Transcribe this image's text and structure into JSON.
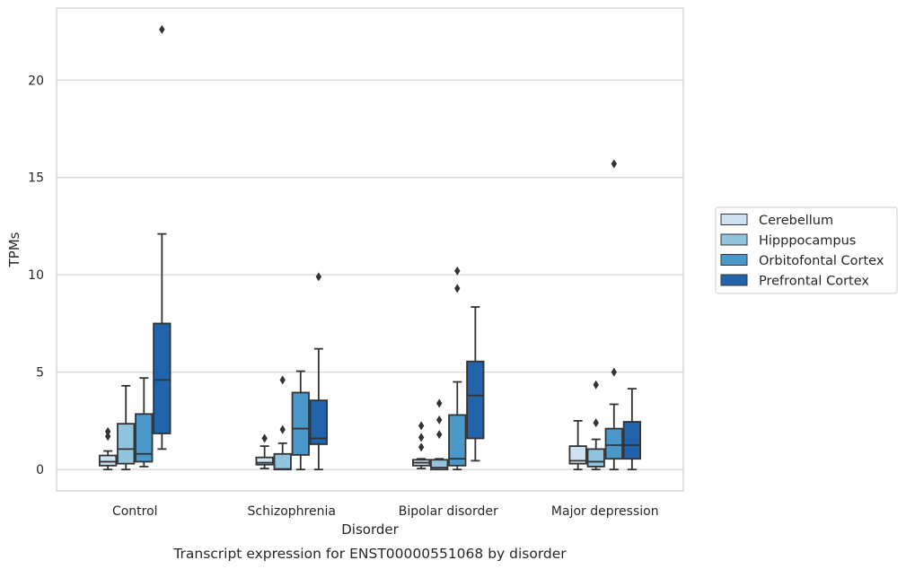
{
  "chart_data": {
    "type": "boxplot",
    "title": "",
    "caption": "Transcript expression for ENST00000551068 by disorder",
    "xlabel": "Disorder",
    "ylabel": "TPMs",
    "ylim": [
      -1.1,
      23.7
    ],
    "yticks": [
      0,
      5,
      10,
      15,
      20
    ],
    "grid": "horizontal",
    "legend_position": "right",
    "categories": [
      "Control",
      "Schizophrenia",
      "Bipolar disorder",
      "Major depression"
    ],
    "colors": {
      "Cerebellum": "#d0e1f2",
      "Hipppocampus": "#93c4de",
      "Orbitofontal Cortex": "#4a98c9",
      "Prefrontal Cortex": "#2164ab",
      "line": "#333333",
      "grid": "#d3d3d3"
    },
    "series": [
      {
        "name": "Cerebellum",
        "boxes": [
          {
            "whislo": 0.0,
            "q1": 0.2,
            "med": 0.4,
            "q3": 0.72,
            "whishi": 0.95,
            "fliers": [
              1.7,
              1.95
            ]
          },
          {
            "whislo": 0.05,
            "q1": 0.25,
            "med": 0.35,
            "q3": 0.62,
            "whishi": 1.2,
            "fliers": [
              1.6
            ]
          },
          {
            "whislo": 0.05,
            "q1": 0.2,
            "med": 0.35,
            "q3": 0.5,
            "whishi": 0.55,
            "fliers": [
              1.15,
              1.65,
              2.25
            ]
          },
          {
            "whislo": 0.0,
            "q1": 0.3,
            "med": 0.45,
            "q3": 1.2,
            "whishi": 2.5,
            "fliers": []
          }
        ]
      },
      {
        "name": "Hipppocampus",
        "boxes": [
          {
            "whislo": 0.0,
            "q1": 0.3,
            "med": 1.05,
            "q3": 2.35,
            "whishi": 4.3,
            "fliers": []
          },
          {
            "whislo": 0.0,
            "q1": 0.0,
            "med": 0.03,
            "q3": 0.8,
            "whishi": 1.35,
            "fliers": [
              2.05,
              4.6
            ]
          },
          {
            "whislo": 0.0,
            "q1": 0.0,
            "med": 0.1,
            "q3": 0.5,
            "whishi": 0.55,
            "fliers": [
              1.8,
              2.55,
              3.4
            ]
          },
          {
            "whislo": 0.0,
            "q1": 0.15,
            "med": 0.4,
            "q3": 1.05,
            "whishi": 1.55,
            "fliers": [
              2.4,
              4.35
            ]
          }
        ]
      },
      {
        "name": "Orbitofontal Cortex",
        "boxes": [
          {
            "whislo": 0.15,
            "q1": 0.4,
            "med": 0.8,
            "q3": 2.85,
            "whishi": 4.7,
            "fliers": []
          },
          {
            "whislo": 0.0,
            "q1": 0.75,
            "med": 2.1,
            "q3": 3.95,
            "whishi": 5.05,
            "fliers": []
          },
          {
            "whislo": 0.0,
            "q1": 0.2,
            "med": 0.55,
            "q3": 2.8,
            "whishi": 4.5,
            "fliers": [
              9.3,
              10.2
            ]
          },
          {
            "whislo": 0.0,
            "q1": 0.55,
            "med": 1.25,
            "q3": 2.1,
            "whishi": 3.35,
            "fliers": [
              5.0,
              15.7
            ]
          }
        ]
      },
      {
        "name": "Prefrontal Cortex",
        "boxes": [
          {
            "whislo": 1.05,
            "q1": 1.85,
            "med": 4.6,
            "q3": 7.5,
            "whishi": 12.1,
            "fliers": [
              22.6
            ]
          },
          {
            "whislo": 0.0,
            "q1": 1.3,
            "med": 1.6,
            "q3": 3.55,
            "whishi": 6.2,
            "fliers": [
              9.9
            ]
          },
          {
            "whislo": 0.45,
            "q1": 1.6,
            "med": 3.8,
            "q3": 5.55,
            "whishi": 8.35,
            "fliers": []
          },
          {
            "whislo": 0.0,
            "q1": 0.55,
            "med": 1.25,
            "q3": 2.45,
            "whishi": 4.15,
            "fliers": []
          }
        ]
      }
    ]
  }
}
